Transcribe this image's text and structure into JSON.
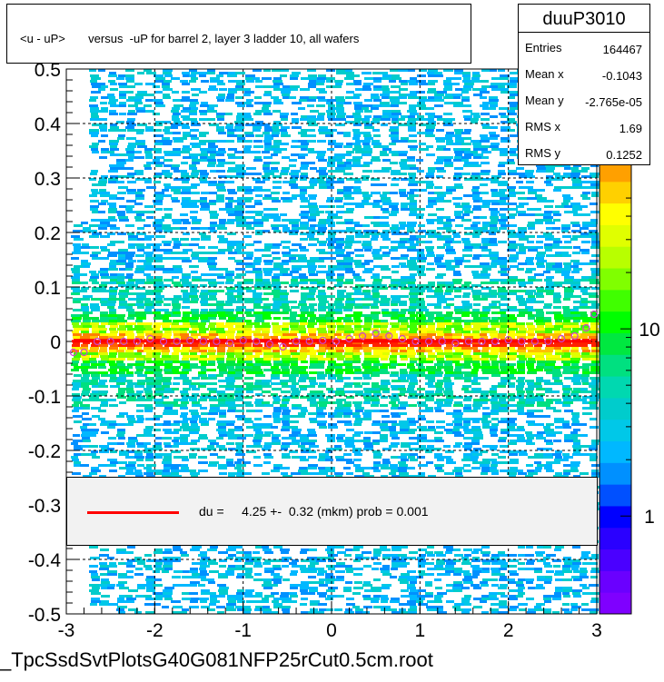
{
  "title": "<u - uP>       versus  -uP for barrel 2, layer 3 ladder 10, all wafers",
  "stats": {
    "name": "duuP3010",
    "rows": [
      {
        "key": "Entries",
        "value": "164467"
      },
      {
        "key": "Mean x",
        "value": "-0.1043"
      },
      {
        "key": "Mean y",
        "value": "-2.765e-05"
      },
      {
        "key": "RMS x",
        "value": "1.69"
      },
      {
        "key": "RMS y",
        "value": "0.1252"
      }
    ]
  },
  "legend": {
    "text": "du =     4.25 +-  0.32 (mkm) prob = 0.001",
    "color": "#ff0000"
  },
  "footer": "_TpcSsdSvtPlotsG40G081NFP25rCut0.5cm.root",
  "palette": {
    "colors": [
      "#7f00ff",
      "#6a00ff",
      "#4a00ff",
      "#2a00ff",
      "#0000ff",
      "#0050ff",
      "#0090ff",
      "#00b8ff",
      "#00c8e8",
      "#00cccc",
      "#00d8b0",
      "#00e080",
      "#00e840",
      "#00ff00",
      "#40ff00",
      "#80ff00",
      "#b8ff00",
      "#e0ff00",
      "#ffff00",
      "#ffd000",
      "#ffa000"
    ],
    "labels": [
      {
        "text": "1",
        "value": 1
      },
      {
        "text": "10",
        "value": 10
      }
    ]
  },
  "chart_data": {
    "type": "heatmap",
    "xlim": [
      -3,
      3
    ],
    "ylim": [
      -0.5,
      0.5
    ],
    "xticks": [
      -3,
      -2,
      -1,
      0,
      1,
      2,
      3
    ],
    "yticks": [
      -0.5,
      -0.4,
      -0.3,
      -0.2,
      -0.1,
      0,
      0.1,
      0.2,
      0.3,
      0.4,
      0.5
    ],
    "xtick_labels": [
      "-3",
      "-2",
      "-1",
      "0",
      "1",
      "2",
      "3"
    ],
    "ytick_labels": [
      "-0.5",
      "-0.4",
      "-0.3",
      "-0.2",
      "-0.1",
      "0",
      "0.1",
      "0.2",
      "0.3",
      "0.4",
      "0.5"
    ],
    "grid": true,
    "zscale": "log",
    "profile": {
      "x": [
        -2.92,
        -2.8,
        -2.65,
        -2.5,
        -2.35,
        -2.2,
        -2.05,
        -1.9,
        -1.75,
        -1.6,
        -1.45,
        -1.3,
        -1.15,
        -1.0,
        -0.85,
        -0.7,
        -0.55,
        -0.4,
        -0.25,
        -0.1,
        0.05,
        0.2,
        0.35,
        0.5,
        0.65,
        0.8,
        0.95,
        1.1,
        1.25,
        1.4,
        1.55,
        1.7,
        1.85,
        2.0,
        2.15,
        2.3,
        2.45,
        2.6,
        2.75,
        2.88,
        2.97
      ],
      "y": [
        -0.02,
        -0.02,
        0.0,
        0.0,
        0.0,
        0.0,
        0.005,
        0.0,
        0.0,
        0.002,
        0.0,
        0.0,
        -0.003,
        0.002,
        0.0,
        -0.005,
        -0.01,
        0.0,
        0.0,
        0.002,
        0.0,
        0.005,
        0.01,
        0.015,
        0.01,
        0.005,
        0.0,
        0.0,
        0.0,
        -0.003,
        0.0,
        0.0,
        0.0,
        0.003,
        0.0,
        0.0,
        0.0,
        0.005,
        0.01,
        0.025,
        0.05
      ]
    },
    "fit_du_mkm": 4.25,
    "fit_du_err_mkm": 0.32,
    "fit_prob": 0.001
  }
}
